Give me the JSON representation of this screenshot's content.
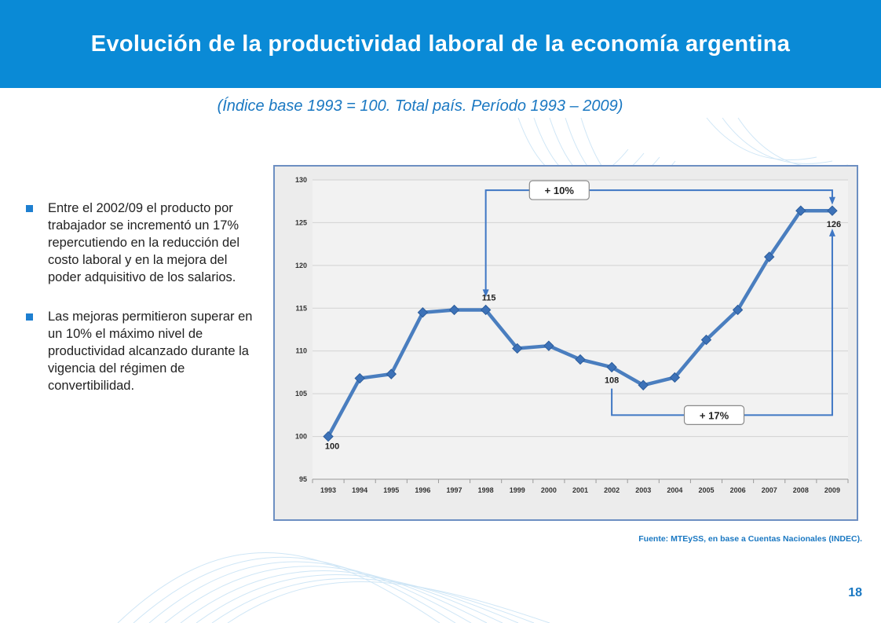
{
  "slide": {
    "title": "Evolución de la productividad laboral de la economía argentina",
    "subtitle": "(Índice base 1993 = 100. Total país. Período 1993 – 2009)",
    "bullets": [
      "Entre el 2002/09 el producto por trabajador se incrementó un 17% repercutiendo en la reducción del costo laboral y en la mejora del poder adquisitivo de los salarios.",
      "Las mejoras permitieron superar en un 10% el máximo nivel de productividad alcanzado durante la vigencia del régimen de convertibilidad."
    ],
    "source": "Fuente: MTEySS, en base a Cuentas Nacionales (INDEC).",
    "page_number": "18",
    "colors": {
      "header": "#0a8ad6",
      "accent": "#1a78c2",
      "line": "#4a7ebf",
      "marker": "#3d72b8"
    }
  },
  "chart_data": {
    "type": "line",
    "title": "",
    "xlabel": "",
    "ylabel": "",
    "ylim": [
      95,
      130
    ],
    "yticks": [
      95,
      100,
      105,
      110,
      115,
      120,
      125,
      130
    ],
    "grid": true,
    "categories": [
      "1993",
      "1994",
      "1995",
      "1996",
      "1997",
      "1998",
      "1999",
      "2000",
      "2001",
      "2002",
      "2003",
      "2004",
      "2005",
      "2006",
      "2007",
      "2008",
      "2009"
    ],
    "series": [
      {
        "name": "Productividad laboral",
        "values": [
          100,
          106.8,
          107.3,
          114.5,
          114.8,
          114.8,
          110.3,
          110.6,
          109.0,
          108.1,
          106.0,
          106.9,
          111.3,
          114.8,
          121.0,
          126.4,
          126.4
        ]
      }
    ],
    "point_labels": [
      {
        "year": "1993",
        "text": "100"
      },
      {
        "year": "1998",
        "text": "115"
      },
      {
        "year": "2002",
        "text": "108"
      },
      {
        "year": "2009",
        "text": "126"
      }
    ],
    "annotations": [
      {
        "text": "+ 10%",
        "from": "1998",
        "to": "2009"
      },
      {
        "text": "+ 17%",
        "from": "2002",
        "to": "2009"
      }
    ]
  }
}
